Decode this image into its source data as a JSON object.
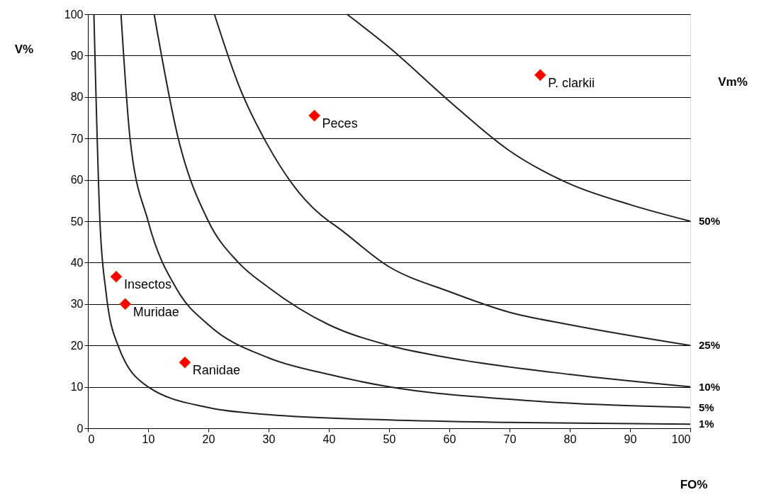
{
  "chart_data": {
    "type": "scatter",
    "xlabel": "FO%",
    "ylabel": "V%",
    "xlim": [
      0,
      100
    ],
    "ylim": [
      0,
      100
    ],
    "xticks": [
      0,
      10,
      20,
      30,
      40,
      50,
      60,
      70,
      80,
      90,
      100
    ],
    "yticks": [
      0,
      10,
      20,
      30,
      40,
      50,
      60,
      70,
      80,
      90,
      100
    ],
    "grid": "y",
    "legend": false,
    "x": [
      75.1,
      37.6,
      4.7,
      6.2,
      16.1
    ],
    "series": [
      {
        "color": "#ff0000",
        "marker": "diamond",
        "values": [
          85.3,
          75.5,
          36.6,
          30.0,
          15.9
        ]
      },
      {
        "name": "50%",
        "type": "line",
        "color": "#222222",
        "x": [
          43,
          50,
          60,
          70,
          80,
          90,
          100
        ],
        "values": [
          100,
          92,
          79,
          67,
          59,
          54,
          50
        ]
      },
      {
        "name": "25%",
        "type": "line",
        "color": "#222222",
        "x": [
          21,
          25,
          30,
          35,
          40,
          41,
          50,
          60,
          70,
          80,
          100
        ],
        "values": [
          100,
          83,
          68,
          57,
          50,
          49,
          39,
          33,
          28,
          25,
          20
        ]
      },
      {
        "name": "10%",
        "type": "line",
        "color": "#222222",
        "x": [
          11,
          15,
          20,
          25,
          30,
          40,
          50,
          60,
          80,
          100
        ],
        "values": [
          100,
          70,
          50,
          40,
          34,
          25,
          20,
          17,
          13,
          10
        ]
      },
      {
        "name": "5%",
        "type": "line",
        "color": "#222222",
        "x": [
          5.5,
          7,
          10,
          15,
          20,
          30,
          40,
          50,
          70,
          100
        ],
        "values": [
          100,
          70,
          50,
          33,
          25,
          17,
          13,
          10,
          7,
          5
        ]
      },
      {
        "name": "1%",
        "type": "line",
        "color": "#222222",
        "x": [
          1,
          2,
          3,
          5,
          10,
          20,
          30,
          50,
          70,
          100
        ],
        "values": [
          100,
          50,
          33,
          20,
          10,
          5,
          3.3,
          2,
          1.4,
          1
        ]
      }
    ],
    "annotations": [
      {
        "text": "P. clarkii",
        "x": 75.1,
        "y": 85.3
      },
      {
        "text": "Peces",
        "x": 37.6,
        "y": 75.5
      },
      {
        "text": "Insectos",
        "x": 4.7,
        "y": 36.6
      },
      {
        "text": "Muridae",
        "x": 6.2,
        "y": 30.0
      },
      {
        "text": "Ranidae",
        "x": 16.1,
        "y": 15.9
      },
      "Vm%"
    ]
  }
}
